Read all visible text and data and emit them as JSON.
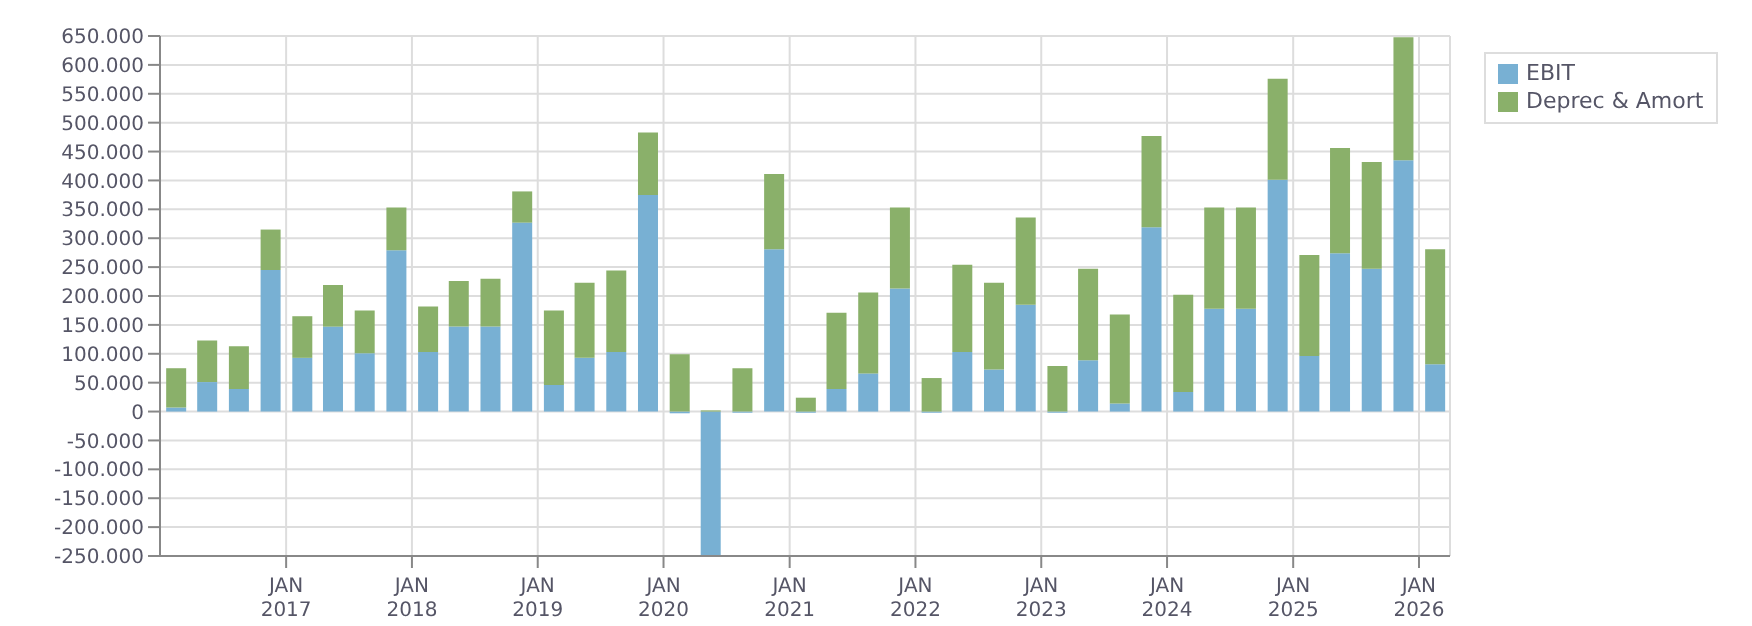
{
  "chart_data": {
    "type": "bar",
    "stacked": true,
    "x": [
      "2016-02-15",
      "2016-05-15",
      "2016-08-15",
      "2016-11-15",
      "2017-02-15",
      "2017-05-15",
      "2017-08-15",
      "2017-11-15",
      "2018-02-15",
      "2018-05-15",
      "2018-08-15",
      "2018-11-15",
      "2019-02-15",
      "2019-05-15",
      "2019-08-15",
      "2019-11-15",
      "2020-02-15",
      "2020-05-15",
      "2020-08-15",
      "2020-11-15",
      "2021-02-15",
      "2021-05-15",
      "2021-08-15",
      "2021-11-15",
      "2022-02-15",
      "2022-05-15",
      "2022-08-15",
      "2022-11-15",
      "2023-02-15",
      "2023-05-15",
      "2023-08-15",
      "2023-11-15",
      "2024-02-15",
      "2024-05-15",
      "2024-08-15",
      "2024-11-15",
      "2025-02-15",
      "2025-05-15",
      "2025-08-15",
      "2025-11-15",
      "2026-02-15"
    ],
    "series": [
      {
        "name": "EBIT",
        "color": "#78b0d3",
        "values": [
          7000,
          51000,
          39000,
          245000,
          93000,
          147000,
          101000,
          279000,
          103000,
          147000,
          147000,
          327000,
          46000,
          93000,
          103000,
          375000,
          -3000,
          -250000,
          -2000,
          281000,
          -2000,
          39000,
          66000,
          213000,
          -2000,
          103000,
          73000,
          185000,
          -2000,
          89000,
          14000,
          319000,
          34000,
          178000,
          178000,
          401000,
          96000,
          274000,
          247000,
          435000,
          82000
        ]
      },
      {
        "name": "Deprec & Amort",
        "color": "#8ab06a",
        "values": [
          68000,
          72000,
          74000,
          70000,
          72000,
          72000,
          74000,
          74000,
          79000,
          79000,
          83000,
          54000,
          129000,
          130000,
          141000,
          108000,
          99000,
          2000,
          75000,
          130000,
          24000,
          132000,
          140000,
          140000,
          58000,
          151000,
          150000,
          151000,
          79000,
          158000,
          154000,
          158000,
          168000,
          175000,
          175000,
          175000,
          175000,
          182000,
          185000,
          213000,
          199000
        ]
      }
    ],
    "xlim": [
      "2016-01-01",
      "2026-04-01"
    ],
    "xticks": [
      {
        "value": "2017-01-01",
        "label": "JAN\n2017"
      },
      {
        "value": "2018-01-01",
        "label": "JAN\n2018"
      },
      {
        "value": "2019-01-01",
        "label": "JAN\n2019"
      },
      {
        "value": "2020-01-01",
        "label": "JAN\n2020"
      },
      {
        "value": "2021-01-01",
        "label": "JAN\n2021"
      },
      {
        "value": "2022-01-01",
        "label": "JAN\n2022"
      },
      {
        "value": "2023-01-01",
        "label": "JAN\n2023"
      },
      {
        "value": "2024-01-01",
        "label": "JAN\n2024"
      },
      {
        "value": "2025-01-01",
        "label": "JAN\n2025"
      },
      {
        "value": "2026-01-01",
        "label": "JAN\n2026"
      }
    ],
    "ylim": [
      -250000,
      650000
    ],
    "yticks": [
      {
        "value": -250000,
        "label": "-250.000"
      },
      {
        "value": -200000,
        "label": "-200.000"
      },
      {
        "value": -150000,
        "label": "-150.000"
      },
      {
        "value": -100000,
        "label": "-100.000"
      },
      {
        "value": -50000,
        "label": "-50.000"
      },
      {
        "value": 0,
        "label": "0"
      },
      {
        "value": 50000,
        "label": "50.000"
      },
      {
        "value": 100000,
        "label": "100.000"
      },
      {
        "value": 150000,
        "label": "150.000"
      },
      {
        "value": 200000,
        "label": "200.000"
      },
      {
        "value": 250000,
        "label": "250.000"
      },
      {
        "value": 300000,
        "label": "300.000"
      },
      {
        "value": 350000,
        "label": "350.000"
      },
      {
        "value": 400000,
        "label": "400.000"
      },
      {
        "value": 450000,
        "label": "450.000"
      },
      {
        "value": 500000,
        "label": "500.000"
      },
      {
        "value": 550000,
        "label": "550.000"
      },
      {
        "value": 600000,
        "label": "600.000"
      },
      {
        "value": 650000,
        "label": "650.000"
      }
    ],
    "grid": true,
    "legend": "top right"
  }
}
